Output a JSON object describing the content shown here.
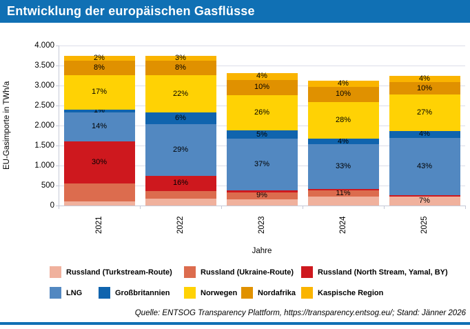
{
  "header": {
    "title": "Entwicklung der europäischen Gasflüsse"
  },
  "colors": {
    "header_blue": "#1070B4",
    "turkstream": "#F0B19D",
    "ukraine": "#DC6C4E",
    "northstream": "#CE181E",
    "lng": "#5288C1",
    "gb": "#1064AE",
    "norwegen": "#FFD204",
    "nordafrika": "#E09100",
    "kaspisch": "#FAB400",
    "gridline": "#DCDEE9",
    "axis": "#C4C8D6"
  },
  "chart_data": {
    "type": "bar",
    "subtype": "stacked",
    "title": "Entwicklung der europäischen Gasflüsse",
    "categories": [
      "2021",
      "2022",
      "2023",
      "2024",
      "2025"
    ],
    "xlabel": "Jahre",
    "ylabel": "EU-Gasimporte in TWh/a",
    "ylim": [
      0,
      4000
    ],
    "ytick_step": 500,
    "ytick_labels": [
      "0",
      "500",
      "1.000",
      "1.500",
      "2.000",
      "2.500",
      "3.000",
      "3.500",
      "4.000"
    ],
    "grid": true,
    "legend_position": "bottom",
    "note": "values_twh are estimates read from the axis; labels are the percentage data labels printed on the segments (null = no label shown)",
    "totals_twh_estimate": [
      3750,
      3750,
      3315,
      3115,
      3240
    ],
    "series": [
      {
        "name": "Russland (Turkstream-Route)",
        "color": "turkstream",
        "values_twh": [
          100,
          175,
          150,
          230,
          225
        ],
        "labels": [
          null,
          null,
          null,
          null,
          "7%"
        ]
      },
      {
        "name": "Russland (Ukraine-Route)",
        "color": "ukraine",
        "values_twh": [
          450,
          190,
          185,
          145,
          0
        ],
        "labels": [
          null,
          null,
          "9%",
          "11%",
          null
        ]
      },
      {
        "name": "Russland (North Stream, Yamal, BY)",
        "color": "northstream",
        "values_twh": [
          1060,
          375,
          45,
          35,
          40
        ],
        "labels": [
          "30%",
          "16%",
          null,
          null,
          null
        ]
      },
      {
        "name": "LNG",
        "color": "lng",
        "values_twh": [
          715,
          1295,
          1295,
          1120,
          1430
        ],
        "labels": [
          "14%",
          "29%",
          "37%",
          "33%",
          "43%"
        ]
      },
      {
        "name": "Großbritannien",
        "color": "gb",
        "values_twh": [
          80,
          290,
          200,
          145,
          175
        ],
        "labels": [
          "1%",
          "6%",
          "5%",
          "4%",
          "4%"
        ]
      },
      {
        "name": "Norwegen",
        "color": "norwegen",
        "values_twh": [
          850,
          930,
          890,
          920,
          900
        ],
        "labels": [
          "17%",
          "22%",
          "26%",
          "28%",
          "27%"
        ]
      },
      {
        "name": "Nordafrika",
        "color": "nordafrika",
        "values_twh": [
          370,
          370,
          375,
          375,
          320
        ],
        "labels": [
          "8%",
          "8%",
          "10%",
          "10%",
          "10%"
        ]
      },
      {
        "name": "Kaspische Region",
        "color": "kaspisch",
        "values_twh": [
          125,
          125,
          175,
          145,
          150
        ],
        "labels": [
          "2%",
          "3%",
          "4%",
          "4%",
          "4%"
        ]
      }
    ]
  },
  "legend": {
    "rows": [
      [
        {
          "label": "Russland (Turkstream-Route)",
          "color": "turkstream"
        },
        {
          "label": "Russland (Ukraine-Route)",
          "color": "ukraine"
        },
        {
          "label": "Russland (North Stream, Yamal, BY)",
          "color": "northstream"
        }
      ],
      [
        {
          "label": "LNG",
          "color": "lng"
        },
        {
          "label": "Großbritannien",
          "color": "gb"
        },
        {
          "label": "Norwegen",
          "color": "norwegen"
        },
        {
          "label": "Nordafrika",
          "color": "nordafrika"
        },
        {
          "label": "Kaspische Region",
          "color": "kaspisch"
        }
      ]
    ]
  },
  "source": {
    "text": "Quelle: ENTSOG Transparency Plattform, https://transparency.entsog.eu/; Stand: Jänner 2026"
  }
}
